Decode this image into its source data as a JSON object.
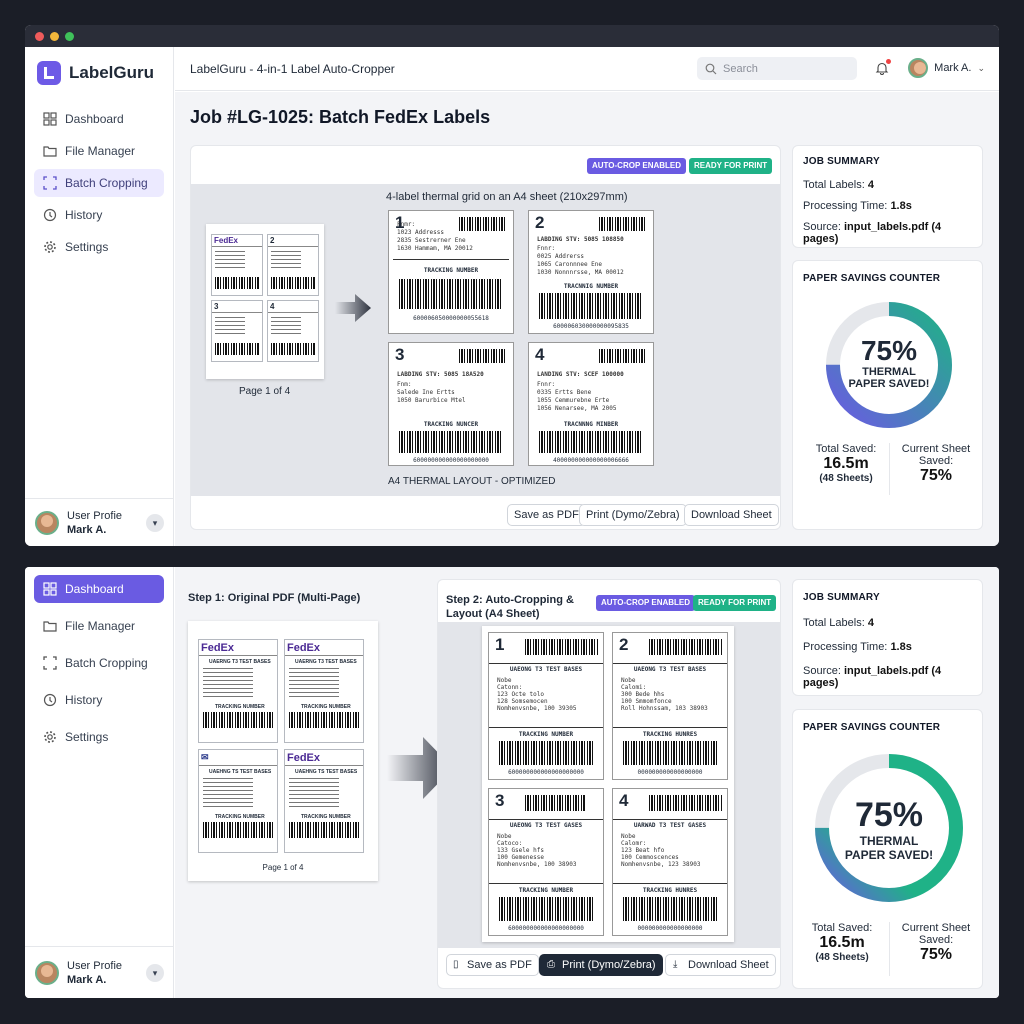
{
  "app": {
    "brand": "LabelGuru",
    "window_title": "LabelGuru - 4-in-1 Label Auto-Cropper"
  },
  "search": {
    "placeholder": "Search"
  },
  "user": {
    "name": "Mark A.",
    "role": "User Profie"
  },
  "nav": [
    "Dashboard",
    "File Manager",
    "Batch Cropping",
    "History",
    "Settings"
  ],
  "job": {
    "title": "Job #LG-1025: Batch FedEx Labels"
  },
  "badges": {
    "auto_crop": "AUTO-CROP ENABLED",
    "ready": "READY FOR PRINT"
  },
  "preview1": {
    "grid_caption": "4-label thermal grid on an A4 sheet (210x297mm)",
    "layout_caption": "A4 THERMAL LAYOUT - OPTIMIZED",
    "page_caption": "Page 1 of 4",
    "labels": [
      {
        "num": "1",
        "addr": [
          "Fnmr:",
          "1023 Addresss",
          "2835 Sestrerner Ene",
          "1630 Hammam, MA 20012"
        ],
        "tn_label": "TRACKING NUMBER",
        "tn_value": "600006050000000055618"
      },
      {
        "num": "2",
        "addr": [
          "LABDING STV: 5085 108850",
          "Fnnr:",
          "0025 Addrerss",
          "1065 Caronnnee Ene",
          "1030 Nonnnrsse, MA 00012"
        ],
        "tn_label": "TRACNNIG NUMBER",
        "tn_value": "600006030000000095835"
      },
      {
        "num": "3",
        "addr": [
          "LABDING STV: 5085 18A520",
          "Fnm:",
          "Salede Ine Ertts",
          "1050 Barurbice Mtel"
        ],
        "tn_label": "TRACKING NUNCER",
        "tn_value": "600000000000000000000"
      },
      {
        "num": "4",
        "addr": [
          "LANDING STV: SCEF 100000",
          "Fnnr:",
          "0335 Ertts Bene",
          "1055 Cemmurebne Erte",
          "1056 Nenarsee, MA 2005"
        ],
        "tn_label": "TRACNNNG MINBER",
        "tn_value": "400000000000000006666"
      }
    ]
  },
  "buttons": {
    "save_pdf": "Save as PDF",
    "print": "Print (Dymo/Zebra)",
    "download": "Download Sheet"
  },
  "summary": {
    "heading": "JOB SUMMARY",
    "total_labels_label": "Total Labels:",
    "total_labels": "4",
    "time_label": "Processing Time:",
    "time": "1.8s",
    "source_label": "Source:",
    "source": "input_labels.pdf (4 pages)"
  },
  "savings": {
    "heading": "PAPER SAVINGS COUNTER",
    "percent": "75%",
    "line1": "THERMAL",
    "line2": "PAPER SAVED!",
    "progress": 0.75,
    "total_saved_label": "Total Saved:",
    "total_saved": "16.5m",
    "sheets": "(48 Sheets)",
    "current_label": "Current Sheet",
    "current_label2": "Saved:",
    "current": "75%"
  },
  "step1": {
    "title": "Step 1: Original PDF (Multi-Page)",
    "page_caption": "Page 1 of 4",
    "label_header": "UAERNG T3 TEST BASES",
    "label_header_alt": "UAEHNG TS TEST BASES",
    "tracking": "TRACKING NUMBER",
    "brand": "FedEx"
  },
  "step2": {
    "title_line1": "Step 2: Auto-Cropping &",
    "title_line2": "Layout (A4 Sheet)",
    "labels": [
      {
        "num": "1",
        "head": "UAEONG T3 TEST BASES",
        "addr": [
          "Nobe",
          "Catonn:",
          "123 Octe tolo",
          "128 Somsemocen",
          "Nomhenvsnbe, 100 39305"
        ],
        "tn_label": "TRACKING NUMBER",
        "tn_value": "600000000000000000000"
      },
      {
        "num": "2",
        "head": "UAEONG T3 TEST BASES",
        "addr": [
          "Nobe",
          "Calomi:",
          "300 Bede hhs",
          "100 Smmomfonce",
          "Roll Hohnssam, 103 38903"
        ],
        "tn_label": "TRACKING HUNRES",
        "tn_value": "000000000000000000"
      },
      {
        "num": "3",
        "head": "UAEONG T3 TEST GASES",
        "addr": [
          "Nobe",
          "Catoco:",
          "133 Gsele hfs",
          "100 Gemenesse",
          "Nomhenvsnbe, 100 38903"
        ],
        "tn_label": "TRACKING NUMBER",
        "tn_value": "600000000000000000000"
      },
      {
        "num": "4",
        "head": "UARWAD T3 TEST GASES",
        "addr": [
          "Nobe",
          "Calomr:",
          "123 Beat hfo",
          "100 Cemmoscences",
          "Nomhenvsnbe, 123 38903"
        ],
        "tn_label": "TRACKING HUNRES",
        "tn_value": "000000000000000000"
      }
    ]
  },
  "colors": {
    "accent": "#6a5be2",
    "green": "#1fb287",
    "ring_start": "#6a5be2",
    "ring_end": "#1fb287"
  }
}
